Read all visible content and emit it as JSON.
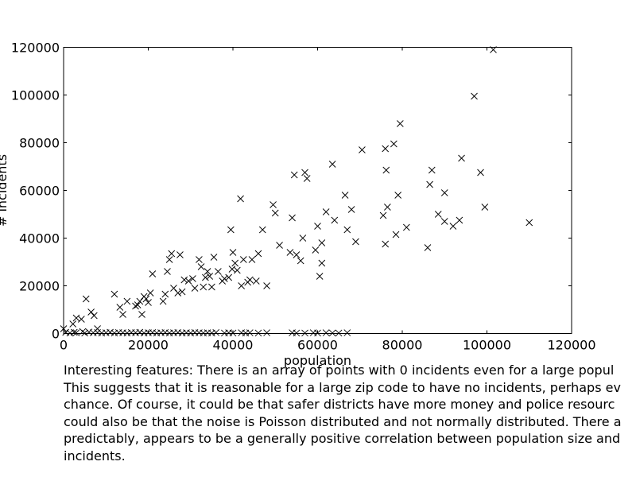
{
  "chart_data": {
    "type": "scatter",
    "title": "",
    "xlabel": "population",
    "ylabel": "# incidents",
    "xlim": [
      0,
      120000
    ],
    "ylim": [
      0,
      120000
    ],
    "x_ticks": [
      "0",
      "20000",
      "40000",
      "60000",
      "80000",
      "100000",
      "120000"
    ],
    "y_ticks": [
      "0",
      "20000",
      "40000",
      "60000",
      "80000",
      "100000",
      "120000"
    ],
    "marker": "x",
    "grid": false,
    "series": [
      {
        "points": [
          [
            0,
            2000
          ],
          [
            2200,
            4000
          ],
          [
            3000,
            6500
          ],
          [
            4200,
            6000
          ],
          [
            5300,
            14500
          ],
          [
            6500,
            9000
          ],
          [
            7200,
            7500
          ],
          [
            8000,
            2000
          ],
          [
            12000,
            16500
          ],
          [
            13300,
            11000
          ],
          [
            14000,
            8000
          ],
          [
            15000,
            13500
          ],
          [
            17000,
            11500
          ],
          [
            17500,
            12000
          ],
          [
            18000,
            13500
          ],
          [
            18500,
            8000
          ],
          [
            19000,
            15500
          ],
          [
            19500,
            14500
          ],
          [
            20000,
            13000
          ],
          [
            20500,
            17000
          ],
          [
            21000,
            25000
          ],
          [
            23500,
            13500
          ],
          [
            24000,
            16500
          ],
          [
            24500,
            26000
          ],
          [
            25000,
            31000
          ],
          [
            25500,
            33500
          ],
          [
            26000,
            19000
          ],
          [
            27000,
            17000
          ],
          [
            27500,
            33000
          ],
          [
            28000,
            17500
          ],
          [
            28500,
            22500
          ],
          [
            29500,
            22000
          ],
          [
            30500,
            23000
          ],
          [
            31000,
            19000
          ],
          [
            32000,
            31000
          ],
          [
            32500,
            28000
          ],
          [
            33000,
            19500
          ],
          [
            33500,
            23500
          ],
          [
            34000,
            26000
          ],
          [
            34500,
            24000
          ],
          [
            35000,
            19500
          ],
          [
            35500,
            32000
          ],
          [
            36500,
            26000
          ],
          [
            37500,
            22000
          ],
          [
            38000,
            23000
          ],
          [
            39000,
            23500
          ],
          [
            39500,
            43500
          ],
          [
            39800,
            27000
          ],
          [
            40000,
            34000
          ],
          [
            40500,
            29500
          ],
          [
            41000,
            26500
          ],
          [
            41800,
            56500
          ],
          [
            42000,
            20000
          ],
          [
            42500,
            31000
          ],
          [
            43500,
            21500
          ],
          [
            44000,
            22500
          ],
          [
            44500,
            31000
          ],
          [
            45500,
            22000
          ],
          [
            46000,
            33500
          ],
          [
            47000,
            43500
          ],
          [
            48000,
            20000
          ],
          [
            49500,
            54000
          ],
          [
            50000,
            50500
          ],
          [
            51000,
            37000
          ],
          [
            53500,
            34000
          ],
          [
            54000,
            48500
          ],
          [
            54500,
            66500
          ],
          [
            55000,
            33000
          ],
          [
            56000,
            30500
          ],
          [
            56500,
            40000
          ],
          [
            57000,
            67500
          ],
          [
            57500,
            65000
          ],
          [
            59500,
            35000
          ],
          [
            60000,
            45000
          ],
          [
            60500,
            24000
          ],
          [
            61000,
            29500
          ],
          [
            61000,
            38000
          ],
          [
            62000,
            51000
          ],
          [
            63500,
            71000
          ],
          [
            64000,
            47500
          ],
          [
            66500,
            58000
          ],
          [
            67000,
            43500
          ],
          [
            68000,
            52000
          ],
          [
            69000,
            38500
          ],
          [
            70500,
            77000
          ],
          [
            75500,
            49500
          ],
          [
            76000,
            37500
          ],
          [
            76000,
            77500
          ],
          [
            76200,
            68500
          ],
          [
            76500,
            53000
          ],
          [
            78000,
            79500
          ],
          [
            78500,
            41500
          ],
          [
            79000,
            58000
          ],
          [
            79500,
            88000
          ],
          [
            81000,
            44500
          ],
          [
            86000,
            36000
          ],
          [
            86500,
            62500
          ],
          [
            87000,
            68500
          ],
          [
            88500,
            50000
          ],
          [
            90000,
            47000
          ],
          [
            90000,
            59000
          ],
          [
            92000,
            45000
          ],
          [
            93500,
            47500
          ],
          [
            94000,
            73500
          ],
          [
            97000,
            99500
          ],
          [
            98500,
            67500
          ],
          [
            99500,
            53000
          ],
          [
            101500,
            119000
          ],
          [
            110000,
            46500
          ],
          [
            500,
            500
          ],
          [
            1500,
            200
          ],
          [
            2500,
            500
          ],
          [
            3000,
            300
          ],
          [
            4500,
            800
          ],
          [
            5000,
            200
          ],
          [
            6000,
            600
          ],
          [
            7000,
            300
          ],
          [
            8000,
            400
          ],
          [
            9000,
            200
          ],
          [
            10000,
            300
          ],
          [
            11000,
            500
          ],
          [
            12000,
            200
          ],
          [
            13000,
            400
          ],
          [
            14000,
            300
          ],
          [
            15000,
            200
          ],
          [
            16000,
            400
          ],
          [
            17000,
            300
          ],
          [
            18000,
            500
          ],
          [
            19000,
            200
          ],
          [
            20000,
            300
          ],
          [
            21000,
            400
          ],
          [
            22000,
            200
          ],
          [
            23000,
            300
          ],
          [
            24000,
            400
          ],
          [
            25000,
            200
          ],
          [
            26000,
            300
          ],
          [
            27000,
            400
          ],
          [
            28000,
            200
          ],
          [
            29000,
            300
          ],
          [
            30000,
            200
          ],
          [
            31000,
            400
          ],
          [
            32000,
            300
          ],
          [
            33000,
            200
          ],
          [
            34000,
            300
          ],
          [
            35000,
            200
          ],
          [
            36000,
            400
          ],
          [
            38000,
            200
          ],
          [
            39000,
            300
          ],
          [
            40000,
            200
          ],
          [
            42000,
            300
          ],
          [
            43000,
            200
          ],
          [
            44000,
            300
          ],
          [
            46000,
            200
          ],
          [
            48000,
            300
          ],
          [
            54000,
            300
          ],
          [
            55000,
            200
          ],
          [
            57000,
            200
          ],
          [
            59000,
            300
          ],
          [
            60000,
            200
          ],
          [
            62000,
            300
          ],
          [
            63500,
            200
          ],
          [
            65000,
            200
          ],
          [
            67000,
            300
          ]
        ]
      }
    ]
  },
  "caption": {
    "lines": [
      "Interesting features: There is an array of points with 0 incidents even for a large popul",
      "This suggests that it is reasonable for a large zip code to have no incidents, perhaps ev",
      "chance. Of course, it could be that safer districts have more money and police resourc",
      "could also be that the noise is Poisson distributed and not normally distributed. There a",
      "predictably, appears to be a generally positive correlation between population size and",
      "incidents."
    ]
  }
}
